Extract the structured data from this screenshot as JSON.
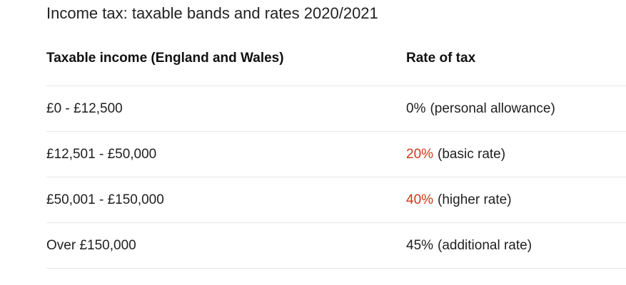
{
  "caption": "Income tax: taxable bands and rates 2020/2021",
  "table": {
    "headers": [
      "Taxable income (England and Wales)",
      "Rate of tax"
    ],
    "rows": [
      {
        "band": "£0 - £12,500",
        "rate": "0%",
        "note": "(personal allowance)",
        "highlight": false
      },
      {
        "band": "£12,501 - £50,000",
        "rate": "20%",
        "note": "(basic rate)",
        "highlight": true
      },
      {
        "band": "£50,001 - £150,000",
        "rate": "40%",
        "note": "(higher rate)",
        "highlight": true
      },
      {
        "band": "Over £150,000",
        "rate": "45%",
        "note": "(additional rate)",
        "highlight": false
      }
    ]
  },
  "colors": {
    "highlight_rate": "#d4351c",
    "text": "#1f1f1f",
    "divider": "#e6e6e6"
  }
}
